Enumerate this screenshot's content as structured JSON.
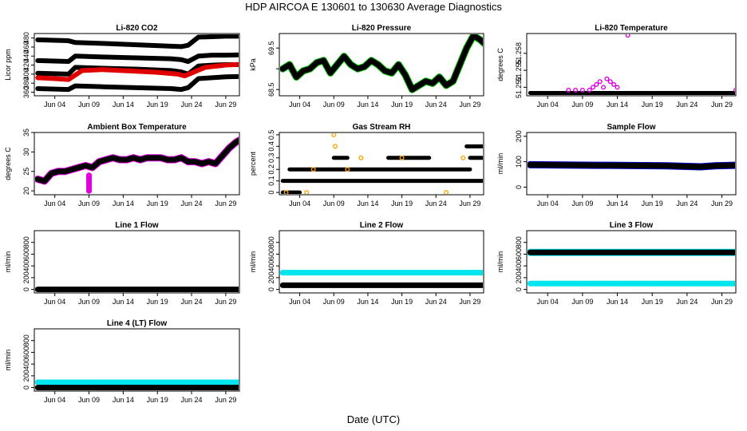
{
  "page": {
    "title": "HDP    AIRCOA E    130601 to 130630    Average Diagnostics",
    "xlabel": "Date (UTC)"
  },
  "x_axis": {
    "domain": [
      0,
      30
    ],
    "tick_values": [
      3,
      8,
      13,
      18,
      23,
      28
    ],
    "tick_labels": [
      "Jun 04",
      "Jun 09",
      "Jun 14",
      "Jun 19",
      "Jun 24",
      "Jun 29"
    ]
  },
  "colors": {
    "black": "#000000",
    "red": "#e00000",
    "green": "#00c000",
    "magenta": "#e000e0",
    "orange": "#ffa500",
    "cyan": "#00e5ee",
    "blue": "#0000cc"
  },
  "chart_data": [
    {
      "id": "co2",
      "type": "scatter",
      "title": "Li-820 CO2",
      "ylabel": "Licor ppm",
      "ylim": [
        352,
        490
      ],
      "yticks": [
        360,
        380,
        400,
        420,
        440,
        460,
        480
      ],
      "series": [
        {
          "name": "std1",
          "color": "black",
          "x": [
            0.5,
            5,
            6,
            10,
            15,
            20,
            21.5,
            22.5,
            24,
            26,
            28,
            30.5
          ],
          "y": [
            476,
            474,
            470,
            468,
            465,
            462,
            461,
            464,
            482,
            483,
            484,
            484
          ]
        },
        {
          "name": "std2",
          "color": "black",
          "x": [
            0.5,
            5,
            6,
            10,
            15,
            20,
            21.5,
            22.5,
            24,
            26,
            28,
            30.5
          ],
          "y": [
            430,
            428,
            440,
            438,
            436,
            434,
            432,
            428,
            440,
            442,
            442,
            443
          ]
        },
        {
          "name": "std3",
          "color": "black",
          "x": [
            0.5,
            5,
            6,
            10,
            15,
            20,
            21.5,
            22.5,
            24,
            26,
            28,
            30.5
          ],
          "y": [
            402,
            400,
            415,
            413,
            411,
            408,
            405,
            400,
            418,
            420,
            421,
            421
          ]
        },
        {
          "name": "std4",
          "color": "black",
          "x": [
            0.5,
            5,
            6,
            10,
            15,
            20,
            21.5,
            22.5,
            24,
            26,
            28,
            30.5
          ],
          "y": [
            368,
            366,
            374,
            372,
            370,
            368,
            366,
            370,
            390,
            392,
            394,
            395
          ]
        },
        {
          "name": "sample",
          "color": "red",
          "x": [
            0.5,
            3,
            5,
            7,
            10,
            14,
            18,
            21,
            22,
            25,
            28,
            30.5
          ],
          "y": [
            392,
            390,
            388,
            408,
            410,
            407,
            404,
            400,
            396,
            415,
            420,
            422
          ]
        }
      ]
    },
    {
      "id": "pressure",
      "type": "line",
      "title": "Li-820 Pressure",
      "ylabel": "kPa",
      "ylim": [
        68.35,
        69.85
      ],
      "yticks": [
        68.5,
        69.0,
        69.5
      ],
      "ytick_labels": [
        "68.5",
        "",
        "69.5"
      ],
      "series": [
        {
          "name": "pressure",
          "color": "black",
          "outline": "green",
          "x": [
            0.5,
            1.5,
            2.5,
            3.5,
            4.5,
            5.5,
            6.5,
            7.5,
            8.5,
            9.5,
            10.5,
            11.5,
            12.5,
            13.5,
            14.5,
            15.5,
            16.5,
            17.5,
            18.5,
            19.5,
            20.5,
            21.5,
            22.5,
            23.5,
            24.5,
            25.5,
            26.5,
            27.5,
            28.5,
            29.5,
            30.5
          ],
          "y": [
            69.0,
            69.1,
            68.8,
            68.95,
            69.0,
            69.15,
            69.2,
            68.9,
            69.1,
            69.3,
            69.1,
            69.0,
            69.05,
            69.2,
            69.1,
            68.95,
            68.9,
            69.1,
            68.85,
            68.5,
            68.6,
            68.7,
            68.65,
            68.8,
            68.6,
            68.7,
            69.1,
            69.5,
            69.8,
            69.7,
            69.55
          ]
        }
      ]
    },
    {
      "id": "temp820",
      "type": "scatter",
      "title": "Li-820 Temperature",
      "ylabel": "degrees C",
      "ylim": [
        51.2505,
        51.2615
      ],
      "yticks": [
        51.252,
        51.255,
        51.258
      ],
      "ytick_labels": [
        "51.252",
        "51.255",
        "51.258"
      ],
      "series": [
        {
          "name": "baseline",
          "color": "black",
          "x": [
            0.5,
            30.5
          ],
          "y": [
            51.251,
            51.251
          ]
        },
        {
          "name": "excursions",
          "color": "magenta",
          "x": [
            6,
            7,
            8,
            9,
            9.5,
            10,
            10.5,
            11,
            11.5,
            12,
            12.5,
            13,
            14.5,
            30
          ],
          "y": [
            51.2515,
            51.2515,
            51.2515,
            51.2515,
            51.252,
            51.2525,
            51.253,
            51.252,
            51.2535,
            51.253,
            51.2525,
            51.252,
            51.2612,
            51.2515
          ]
        }
      ]
    },
    {
      "id": "ambient",
      "type": "line",
      "title": "Ambient Box Temperature",
      "ylabel": "degrees C",
      "ylim": [
        19,
        35
      ],
      "yticks": [
        20,
        25,
        30,
        35
      ],
      "series": [
        {
          "name": "ambient",
          "color": "black",
          "outline": "magenta",
          "x": [
            0.5,
            1.5,
            2.5,
            3.5,
            4.5,
            5.5,
            6.5,
            7.5,
            8.5,
            9.5,
            10.5,
            11.5,
            12.5,
            13.5,
            14.5,
            15.5,
            16.5,
            17.5,
            18.5,
            19.5,
            20.5,
            21.5,
            22.5,
            23.5,
            24.5,
            25.5,
            26.5,
            27.5,
            28.5,
            29.5,
            30.5
          ],
          "y": [
            23,
            22.5,
            24.5,
            25,
            25,
            25.5,
            26,
            26.5,
            26,
            27.5,
            28,
            28.5,
            28,
            28,
            28.5,
            28,
            28.5,
            28.5,
            28.5,
            28,
            28,
            28.5,
            27.5,
            27.5,
            27,
            27.5,
            27,
            29,
            31,
            32.5,
            33.5
          ]
        },
        {
          "name": "dropout",
          "color": "magenta",
          "x": [
            8,
            8,
            8
          ],
          "y": [
            20,
            22,
            24
          ]
        }
      ]
    },
    {
      "id": "rh",
      "type": "scatter",
      "title": "Gas Stream RH",
      "ylabel": "percent",
      "ylim": [
        -0.02,
        0.52
      ],
      "yticks": [
        0.0,
        0.1,
        0.2,
        0.3,
        0.4,
        0.5
      ],
      "series": [
        {
          "name": "level_0.1",
          "color": "black",
          "x": [
            0.5,
            30.5
          ],
          "y": [
            0.1,
            0.1
          ]
        },
        {
          "name": "level_0.2",
          "color": "black",
          "x": [
            1.5,
            28
          ],
          "y": [
            0.2,
            0.2
          ]
        },
        {
          "name": "level_0.3",
          "color": "black",
          "x": [
            8,
            10,
            16,
            22,
            28,
            30.5
          ],
          "y": [
            0.3,
            0.3,
            0.3,
            0.3,
            0.3,
            0.3
          ]
        },
        {
          "name": "level_0.4",
          "color": "black",
          "x": [
            27.5,
            30.5
          ],
          "y": [
            0.4,
            0.4
          ]
        },
        {
          "name": "level_0.0",
          "color": "black",
          "x": [
            0.5,
            3
          ],
          "y": [
            0.0,
            0.0
          ]
        },
        {
          "name": "alt",
          "color": "orange",
          "x": [
            1,
            4,
            5,
            8,
            8.2,
            10,
            12,
            18,
            24.5,
            27
          ],
          "y": [
            0.0,
            0.0,
            0.2,
            0.5,
            0.4,
            0.2,
            0.3,
            0.3,
            0.0,
            0.3
          ]
        }
      ]
    },
    {
      "id": "sample",
      "type": "line",
      "title": "Sample Flow",
      "ylabel": "ml/min",
      "ylim": [
        -30,
        215
      ],
      "yticks": [
        0,
        100,
        200
      ],
      "series": [
        {
          "name": "sample",
          "color": "black",
          "outline": "blue",
          "x": [
            0.5,
            5,
            10,
            15,
            20,
            25,
            27,
            30.5
          ],
          "y": [
            88,
            87,
            86,
            85,
            84,
            80,
            84,
            86
          ]
        }
      ]
    },
    {
      "id": "line1",
      "type": "line",
      "title": "Line 1 Flow",
      "ylabel": "ml/min",
      "ylim": [
        -60,
        1000
      ],
      "yticks": [
        0,
        200,
        400,
        600,
        800
      ],
      "series": [
        {
          "name": "line1",
          "color": "black",
          "x": [
            0.5,
            30.5
          ],
          "y": [
            0,
            0
          ]
        }
      ]
    },
    {
      "id": "line2",
      "type": "line",
      "title": "Line 2 Flow",
      "ylabel": "ml/min",
      "ylim": [
        -60,
        1000
      ],
      "yticks": [
        0,
        200,
        400,
        600,
        800
      ],
      "series": [
        {
          "name": "line2_high",
          "color": "cyan",
          "x": [
            0.5,
            30.5
          ],
          "y": [
            285,
            285
          ]
        },
        {
          "name": "line2_low",
          "color": "black",
          "x": [
            0.5,
            30.5
          ],
          "y": [
            70,
            70
          ]
        }
      ]
    },
    {
      "id": "line3",
      "type": "line",
      "title": "Line 3 Flow",
      "ylabel": "ml/min",
      "ylim": [
        -60,
        1000
      ],
      "yticks": [
        0,
        200,
        400,
        600,
        800
      ],
      "series": [
        {
          "name": "line3_high",
          "color": "black",
          "outline": "cyan",
          "x": [
            0.5,
            30.5
          ],
          "y": [
            630,
            630
          ]
        },
        {
          "name": "line3_low",
          "color": "cyan",
          "x": [
            0.5,
            30.5
          ],
          "y": [
            100,
            100
          ]
        }
      ]
    },
    {
      "id": "line4",
      "type": "line",
      "title": "Line 4 (LT) Flow",
      "ylabel": "ml/min",
      "ylim": [
        -60,
        1000
      ],
      "yticks": [
        0,
        200,
        400,
        600,
        800
      ],
      "series": [
        {
          "name": "line4_high",
          "color": "cyan",
          "x": [
            0.5,
            30.5
          ],
          "y": [
            90,
            90
          ]
        },
        {
          "name": "line4_low",
          "color": "black",
          "x": [
            0.5,
            30.5
          ],
          "y": [
            0,
            0
          ]
        }
      ]
    }
  ]
}
